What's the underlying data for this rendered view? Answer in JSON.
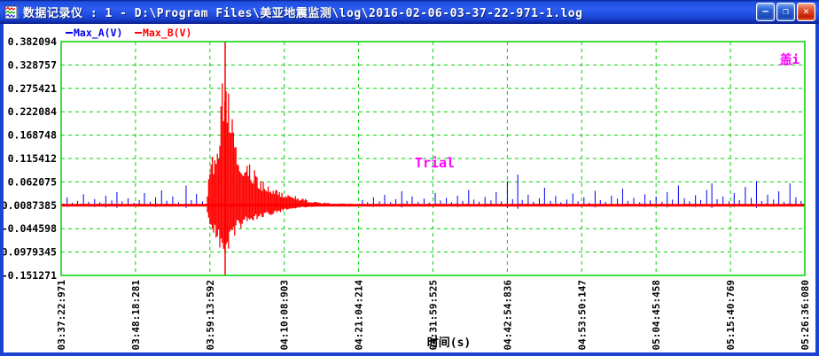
{
  "window": {
    "title": "数据记录仪 : 1 - D:\\Program Files\\美亚地震监测\\log\\2016-02-06-03-37-22-971-1.log",
    "controls": {
      "minimize_glyph": "–",
      "maximize_glyph": "❐",
      "close_glyph": "✕"
    }
  },
  "chart_data": {
    "type": "line",
    "title": "",
    "xlabel": "时间(s)",
    "ylabel": "",
    "grid": "dashed",
    "grid_color": "#00d400",
    "border_color": "#00d400",
    "background": "#ffffff",
    "legend_position": "top-left",
    "legend": [
      {
        "label": "Max_A(V)",
        "color": "#0000ee"
      },
      {
        "label": "Max_B(V)",
        "color": "#ff0000"
      }
    ],
    "watermark_center": "Trial",
    "watermark_corner": "盖i",
    "watermark_color": "#ff00ff",
    "y_ticks": [
      "0.382094",
      "0.328757",
      "0.275421",
      "0.222084",
      "0.168748",
      "0.115412",
      "0.062075",
      "0.0087385",
      "-0.044598",
      "-0.0979345",
      "-0.151271"
    ],
    "y_values": [
      0.382094,
      0.328757,
      0.275421,
      0.222084,
      0.168748,
      0.115412,
      0.062075,
      0.0087385,
      -0.044598,
      -0.0979345,
      -0.151271
    ],
    "ylim": [
      -0.151271,
      0.382094
    ],
    "x_ticks": [
      "03:37:22:971",
      "03:48:18:281",
      "03:59:13:592",
      "04:10:08:903",
      "04:21:04:214",
      "04:31:59:525",
      "04:42:54:836",
      "04:53:50:147",
      "05:04:45:458",
      "05:15:40:769",
      "05:26:36:080"
    ],
    "baseline_value": 0.0087385,
    "series": [
      {
        "name": "Max_A(V)",
        "color": "#0000ee",
        "type": "noise-spikes",
        "noise_band_v": 0.004,
        "spikes": [
          [
            0.008,
            0.018,
            0.004
          ],
          [
            0.015,
            0.006,
            0
          ],
          [
            0.022,
            0.01,
            0.003
          ],
          [
            0.03,
            0.025,
            0
          ],
          [
            0.037,
            0.008,
            0
          ],
          [
            0.045,
            0.014,
            0.004
          ],
          [
            0.052,
            0.007,
            0
          ],
          [
            0.06,
            0.022,
            0.005
          ],
          [
            0.068,
            0.011,
            0
          ],
          [
            0.075,
            0.03,
            0.006
          ],
          [
            0.082,
            0.009,
            0
          ],
          [
            0.09,
            0.016,
            0
          ],
          [
            0.098,
            0.006,
            0
          ],
          [
            0.105,
            0.012,
            0.003
          ],
          [
            0.112,
            0.028,
            0
          ],
          [
            0.12,
            0.008,
            0
          ],
          [
            0.127,
            0.018,
            0.004
          ],
          [
            0.135,
            0.034,
            0
          ],
          [
            0.142,
            0.01,
            0
          ],
          [
            0.15,
            0.02,
            0
          ],
          [
            0.158,
            0.007,
            0
          ],
          [
            0.168,
            0.045,
            0.006
          ],
          [
            0.175,
            0.012,
            0
          ],
          [
            0.182,
            0.026,
            0
          ],
          [
            0.19,
            0.009,
            0
          ],
          [
            0.405,
            0.012,
            0
          ],
          [
            0.412,
            0.007,
            0
          ],
          [
            0.42,
            0.018,
            0.004
          ],
          [
            0.428,
            0.009,
            0
          ],
          [
            0.435,
            0.024,
            0
          ],
          [
            0.443,
            0.007,
            0
          ],
          [
            0.45,
            0.014,
            0
          ],
          [
            0.458,
            0.032,
            0.005
          ],
          [
            0.465,
            0.01,
            0
          ],
          [
            0.472,
            0.02,
            0
          ],
          [
            0.48,
            0.008,
            0
          ],
          [
            0.488,
            0.015,
            0.003
          ],
          [
            0.495,
            0.006,
            0
          ],
          [
            0.503,
            0.028,
            0
          ],
          [
            0.51,
            0.011,
            0
          ],
          [
            0.518,
            0.017,
            0
          ],
          [
            0.525,
            0.007,
            0
          ],
          [
            0.533,
            0.022,
            0.004
          ],
          [
            0.54,
            0.01,
            0
          ],
          [
            0.548,
            0.035,
            0
          ],
          [
            0.555,
            0.013,
            0
          ],
          [
            0.562,
            0.008,
            0
          ],
          [
            0.57,
            0.019,
            0.004
          ],
          [
            0.578,
            0.011,
            0
          ],
          [
            0.585,
            0.03,
            0
          ],
          [
            0.592,
            0.009,
            0
          ],
          [
            0.6,
            0.055,
            0.006
          ],
          [
            0.607,
            0.014,
            0
          ],
          [
            0.614,
            0.07,
            0.008
          ],
          [
            0.62,
            0.012,
            0
          ],
          [
            0.628,
            0.024,
            0
          ],
          [
            0.635,
            0.008,
            0
          ],
          [
            0.643,
            0.016,
            0.003
          ],
          [
            0.65,
            0.04,
            0
          ],
          [
            0.658,
            0.01,
            0
          ],
          [
            0.665,
            0.021,
            0
          ],
          [
            0.672,
            0.007,
            0
          ],
          [
            0.68,
            0.013,
            0.004
          ],
          [
            0.688,
            0.027,
            0
          ],
          [
            0.695,
            0.009,
            0
          ],
          [
            0.703,
            0.018,
            0
          ],
          [
            0.71,
            0.006,
            0
          ],
          [
            0.718,
            0.033,
            0.005
          ],
          [
            0.725,
            0.012,
            0
          ],
          [
            0.732,
            0.008,
            0
          ],
          [
            0.74,
            0.022,
            0
          ],
          [
            0.748,
            0.015,
            0.003
          ],
          [
            0.755,
            0.038,
            0
          ],
          [
            0.762,
            0.01,
            0
          ],
          [
            0.77,
            0.017,
            0
          ],
          [
            0.778,
            0.007,
            0
          ],
          [
            0.785,
            0.025,
            0.004
          ],
          [
            0.792,
            0.011,
            0
          ],
          [
            0.8,
            0.02,
            0
          ],
          [
            0.808,
            0.008,
            0
          ],
          [
            0.815,
            0.03,
            0.005
          ],
          [
            0.822,
            0.013,
            0
          ],
          [
            0.83,
            0.045,
            0
          ],
          [
            0.838,
            0.016,
            0
          ],
          [
            0.845,
            0.009,
            0
          ],
          [
            0.853,
            0.023,
            0.004
          ],
          [
            0.86,
            0.012,
            0
          ],
          [
            0.868,
            0.035,
            0
          ],
          [
            0.875,
            0.05,
            0.006
          ],
          [
            0.882,
            0.014,
            0
          ],
          [
            0.89,
            0.02,
            0
          ],
          [
            0.898,
            0.009,
            0
          ],
          [
            0.905,
            0.028,
            0.004
          ],
          [
            0.912,
            0.012,
            0
          ],
          [
            0.92,
            0.042,
            0
          ],
          [
            0.928,
            0.017,
            0
          ],
          [
            0.935,
            0.055,
            0.006
          ],
          [
            0.942,
            0.01,
            0
          ],
          [
            0.95,
            0.024,
            0
          ],
          [
            0.958,
            0.013,
            0.003
          ],
          [
            0.965,
            0.032,
            0
          ],
          [
            0.972,
            0.008,
            0
          ],
          [
            0.98,
            0.05,
            0
          ],
          [
            0.988,
            0.018,
            0
          ],
          [
            0.995,
            0.01,
            0
          ]
        ]
      },
      {
        "name": "Max_B(V)",
        "color": "#ff0000",
        "type": "burst",
        "baseline_thickness_px": 3,
        "envelope": [
          [
            0.195,
            0.004,
            0.003
          ],
          [
            0.2,
            0.089,
            0.044
          ],
          [
            0.206,
            0.129,
            0.073
          ],
          [
            0.212,
            0.143,
            0.085
          ],
          [
            0.2155,
            0.291,
            0.125
          ],
          [
            0.2205,
            0.3733,
            0.16
          ],
          [
            0.225,
            0.319,
            0.105
          ],
          [
            0.23,
            0.25,
            0.085
          ],
          [
            0.236,
            0.158,
            0.059
          ],
          [
            0.242,
            0.117,
            0.053
          ],
          [
            0.249,
            0.109,
            0.044
          ],
          [
            0.257,
            0.089,
            0.038
          ],
          [
            0.266,
            0.063,
            0.032
          ],
          [
            0.278,
            0.048,
            0.024
          ],
          [
            0.29,
            0.036,
            0.018
          ],
          [
            0.305,
            0.026,
            0.012
          ],
          [
            0.321,
            0.018,
            0.006
          ],
          [
            0.337,
            0.01,
            0.004
          ],
          [
            0.353,
            0.006,
            0.002
          ],
          [
            0.371,
            0.004,
            0.002
          ],
          [
            0.395,
            0.0025,
            0.0015
          ],
          [
            0.43,
            0.0015,
            0.001
          ],
          [
            0.47,
            0.001,
            0.0008
          ]
        ],
        "extreme_spikes": [
          [
            0.2205,
            -0.151271,
            0.382094
          ]
        ]
      }
    ]
  }
}
